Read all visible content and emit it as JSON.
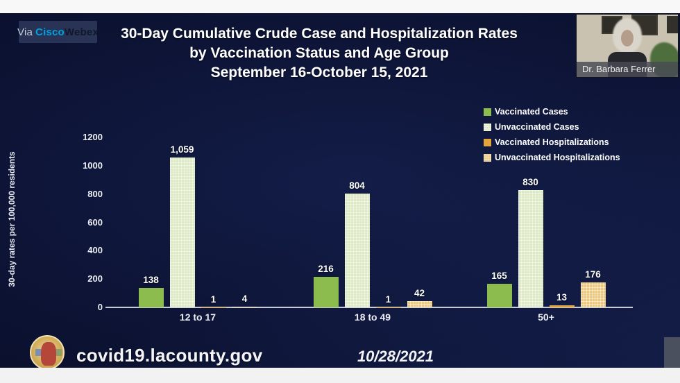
{
  "webex_badge": {
    "via": "Via",
    "cisco": "Cisco",
    "webex": "Webex"
  },
  "title": {
    "line1": "30-Day Cumulative Crude Case and Hospitalization Rates",
    "line2": "by Vaccination Status and Age Group",
    "line3": "September 16-October 15, 2021"
  },
  "video_thumbnail": {
    "name": "Dr. Barbara Ferrer"
  },
  "footer": {
    "url": "covid19.lacounty.gov",
    "date": "10/28/2021"
  },
  "colors": {
    "vaccinated_cases": "#8cbb4e",
    "unvaccinated_cases": "#dde9c2",
    "vaccinated_hospitalizations": "#e3a43b",
    "unvaccinated_hospitalizations": "#ecc87f",
    "background": "#0d1436",
    "cisco_blue": "#00a2e0"
  },
  "chart_data": {
    "type": "bar",
    "title": "30-Day Cumulative Crude Case and Hospitalization Rates by Vaccination Status and Age Group September 16-October 15, 2021",
    "xlabel": "",
    "ylabel": "30-day rates per 100,000 residents",
    "ylim": [
      0,
      1200
    ],
    "yticks": [
      0,
      200,
      400,
      600,
      800,
      1000,
      1200
    ],
    "grid": false,
    "legend_position": "top-right",
    "categories": [
      "12 to 17",
      "18 to 49",
      "50+"
    ],
    "series": [
      {
        "name": "Vaccinated Cases",
        "color": "#8cbb4e",
        "textured": false,
        "values": [
          138,
          216,
          165
        ],
        "labels": [
          "138",
          "216",
          "165"
        ]
      },
      {
        "name": "Unvaccinated Cases",
        "color": "#dde9c2",
        "textured": true,
        "values": [
          1059,
          804,
          830
        ],
        "labels": [
          "1,059",
          "804",
          "830"
        ]
      },
      {
        "name": "Vaccinated Hospitalizations",
        "color": "#e3a43b",
        "textured": false,
        "values": [
          1,
          1,
          13
        ],
        "labels": [
          "1",
          "1",
          "13"
        ]
      },
      {
        "name": "Unvaccinated Hospitalizations",
        "color": "#ecc87f",
        "textured": true,
        "values": [
          4,
          42,
          176
        ],
        "labels": [
          "4",
          "42",
          "176"
        ]
      }
    ]
  }
}
